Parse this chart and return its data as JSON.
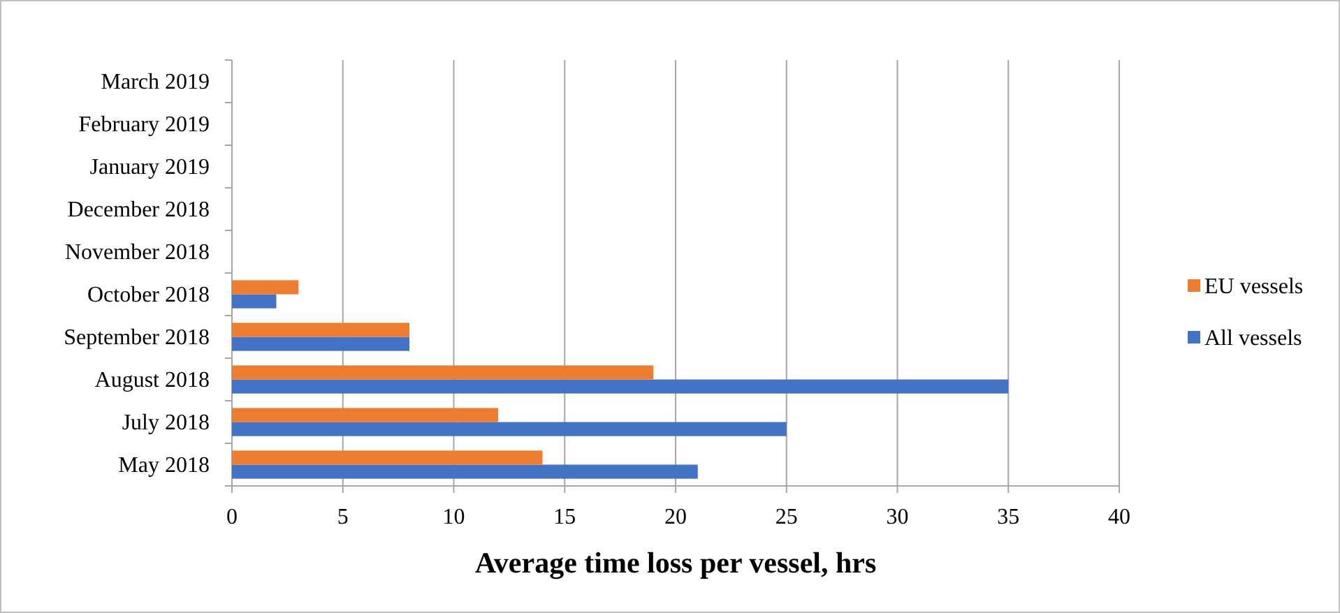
{
  "chart_data": {
    "type": "bar",
    "orientation": "horizontal",
    "xlabel": "Average time loss per vessel, hrs",
    "categories": [
      "March 2019",
      "February 2019",
      "January 2019",
      "December 2018",
      "November 2018",
      "October 2018",
      "September 2018",
      "August 2018",
      "July 2018",
      "May 2018"
    ],
    "series": [
      {
        "name": "All vessels",
        "color": "#4472c4",
        "values": [
          null,
          null,
          null,
          null,
          null,
          2,
          8,
          35,
          25,
          21
        ]
      },
      {
        "name": "EU vessels",
        "color": "#ed7d31",
        "values": [
          null,
          null,
          null,
          null,
          null,
          3,
          8,
          19,
          12,
          14
        ]
      }
    ],
    "xlim": [
      0,
      40
    ],
    "xticks": [
      0,
      5,
      10,
      15,
      20,
      25,
      30,
      35,
      40
    ],
    "grid": "x",
    "legend": "right"
  }
}
